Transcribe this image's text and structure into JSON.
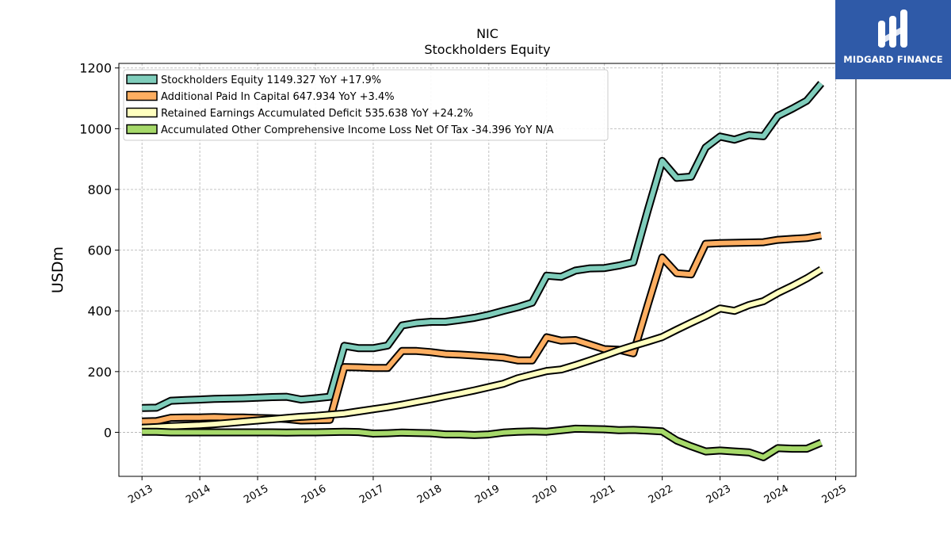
{
  "logo": {
    "text": "MIDGARD FINANCE",
    "background": "#2f5aa8"
  },
  "chart_data": {
    "type": "line",
    "title": "NIC",
    "subtitle": "Stockholders  Equity",
    "ylabel": "USDm",
    "xlabel": "",
    "xlim": [
      2012.6,
      2025.35
    ],
    "ylim": [
      -145,
      1215
    ],
    "x_ticks": [
      2013,
      2014,
      2015,
      2016,
      2017,
      2018,
      2019,
      2020,
      2021,
      2022,
      2023,
      2024,
      2025
    ],
    "y_ticks": [
      0,
      200,
      400,
      600,
      800,
      1000,
      1200
    ],
    "grid": true,
    "legend_position": "upper-left",
    "series": [
      {
        "name": "Stockholders Equity  1149.327 YoY +17.9%",
        "color": "#7fcdbb",
        "points": [
          [
            2013.0,
            80
          ],
          [
            2013.25,
            81
          ],
          [
            2013.5,
            104
          ],
          [
            2013.75,
            106
          ],
          [
            2014.0,
            108
          ],
          [
            2014.25,
            110
          ],
          [
            2014.5,
            111
          ],
          [
            2014.75,
            112
          ],
          [
            2015.0,
            114
          ],
          [
            2015.25,
            116
          ],
          [
            2015.5,
            117
          ],
          [
            2015.75,
            108
          ],
          [
            2016.0,
            112
          ],
          [
            2016.25,
            117
          ],
          [
            2016.5,
            285
          ],
          [
            2016.75,
            277
          ],
          [
            2017.0,
            277
          ],
          [
            2017.25,
            286
          ],
          [
            2017.5,
            352
          ],
          [
            2017.75,
            360
          ],
          [
            2018.0,
            364
          ],
          [
            2018.25,
            364
          ],
          [
            2018.5,
            370
          ],
          [
            2018.75,
            377
          ],
          [
            2019.0,
            387
          ],
          [
            2019.25,
            400
          ],
          [
            2019.5,
            412
          ],
          [
            2019.75,
            427
          ],
          [
            2020.0,
            516
          ],
          [
            2020.25,
            512
          ],
          [
            2020.5,
            533
          ],
          [
            2020.75,
            540
          ],
          [
            2021.0,
            541
          ],
          [
            2021.25,
            549
          ],
          [
            2021.5,
            560
          ],
          [
            2021.75,
            731
          ],
          [
            2022.0,
            894
          ],
          [
            2022.25,
            838
          ],
          [
            2022.5,
            842
          ],
          [
            2022.75,
            938
          ],
          [
            2023.0,
            974
          ],
          [
            2023.25,
            964
          ],
          [
            2023.5,
            979
          ],
          [
            2023.75,
            975
          ],
          [
            2024.0,
            1042
          ],
          [
            2024.25,
            1066
          ],
          [
            2024.5,
            1092
          ],
          [
            2024.75,
            1149
          ]
        ]
      },
      {
        "name": "Additional Paid In Capital  647.934 YoY +3.4%",
        "color": "#fdae61",
        "points": [
          [
            2013.0,
            36
          ],
          [
            2013.25,
            37
          ],
          [
            2013.5,
            48
          ],
          [
            2013.75,
            49
          ],
          [
            2014.0,
            49
          ],
          [
            2014.25,
            50
          ],
          [
            2014.5,
            49
          ],
          [
            2014.75,
            49
          ],
          [
            2015.0,
            47
          ],
          [
            2015.25,
            46
          ],
          [
            2015.5,
            44
          ],
          [
            2015.75,
            39
          ],
          [
            2016.0,
            40
          ],
          [
            2016.25,
            41
          ],
          [
            2016.5,
            215
          ],
          [
            2016.75,
            214
          ],
          [
            2017.0,
            212
          ],
          [
            2017.25,
            212
          ],
          [
            2017.5,
            268
          ],
          [
            2017.75,
            268
          ],
          [
            2018.0,
            264
          ],
          [
            2018.25,
            258
          ],
          [
            2018.5,
            256
          ],
          [
            2018.75,
            253
          ],
          [
            2019.0,
            250
          ],
          [
            2019.25,
            246
          ],
          [
            2019.5,
            237
          ],
          [
            2019.75,
            237
          ],
          [
            2020.0,
            313
          ],
          [
            2020.25,
            302
          ],
          [
            2020.5,
            304
          ],
          [
            2020.75,
            289
          ],
          [
            2021.0,
            274
          ],
          [
            2021.25,
            272
          ],
          [
            2021.5,
            260
          ],
          [
            2021.75,
            420
          ],
          [
            2022.0,
            576
          ],
          [
            2022.25,
            524
          ],
          [
            2022.5,
            520
          ],
          [
            2022.75,
            621
          ],
          [
            2023.0,
            623
          ],
          [
            2023.25,
            624
          ],
          [
            2023.5,
            625
          ],
          [
            2023.75,
            626
          ],
          [
            2024.0,
            634
          ],
          [
            2024.25,
            637
          ],
          [
            2024.5,
            640
          ],
          [
            2024.75,
            648
          ]
        ]
      },
      {
        "name": "Retained Earnings Accumulated Deficit  535.638 YoY +24.2%",
        "color": "#ffffbf",
        "points": [
          [
            2013.0,
            15
          ],
          [
            2013.25,
            17
          ],
          [
            2013.5,
            20
          ],
          [
            2013.75,
            22
          ],
          [
            2014.0,
            24
          ],
          [
            2014.25,
            27
          ],
          [
            2014.5,
            31
          ],
          [
            2014.75,
            35
          ],
          [
            2015.0,
            39
          ],
          [
            2015.25,
            43
          ],
          [
            2015.5,
            47
          ],
          [
            2015.75,
            51
          ],
          [
            2016.0,
            54
          ],
          [
            2016.25,
            58
          ],
          [
            2016.5,
            62
          ],
          [
            2016.75,
            69
          ],
          [
            2017.0,
            76
          ],
          [
            2017.25,
            83
          ],
          [
            2017.5,
            91
          ],
          [
            2017.75,
            100
          ],
          [
            2018.0,
            109
          ],
          [
            2018.25,
            119
          ],
          [
            2018.5,
            128
          ],
          [
            2018.75,
            138
          ],
          [
            2019.0,
            149
          ],
          [
            2019.25,
            160
          ],
          [
            2019.5,
            178
          ],
          [
            2019.75,
            190
          ],
          [
            2020.0,
            202
          ],
          [
            2020.25,
            207
          ],
          [
            2020.5,
            221
          ],
          [
            2020.75,
            237
          ],
          [
            2021.0,
            253
          ],
          [
            2021.25,
            270
          ],
          [
            2021.5,
            285
          ],
          [
            2021.75,
            299
          ],
          [
            2022.0,
            314
          ],
          [
            2022.25,
            338
          ],
          [
            2022.5,
            361
          ],
          [
            2022.75,
            383
          ],
          [
            2023.0,
            408
          ],
          [
            2023.25,
            400
          ],
          [
            2023.5,
            419
          ],
          [
            2023.75,
            432
          ],
          [
            2024.0,
            459
          ],
          [
            2024.25,
            482
          ],
          [
            2024.5,
            507
          ],
          [
            2024.75,
            536
          ]
        ]
      },
      {
        "name": "Accumulated Other Comprehensive Income Loss Net Of Tax  -34.396 YoY N/A",
        "color": "#a6d96a",
        "points": [
          [
            2013.0,
            2
          ],
          [
            2013.25,
            2
          ],
          [
            2013.5,
            0
          ],
          [
            2013.75,
            0
          ],
          [
            2014.0,
            0
          ],
          [
            2014.25,
            0
          ],
          [
            2014.5,
            0
          ],
          [
            2014.75,
            0
          ],
          [
            2015.0,
            0
          ],
          [
            2015.25,
            0
          ],
          [
            2015.5,
            -1
          ],
          [
            2015.75,
            0
          ],
          [
            2016.0,
            0
          ],
          [
            2016.25,
            1
          ],
          [
            2016.5,
            2
          ],
          [
            2016.75,
            1
          ],
          [
            2017.0,
            -4
          ],
          [
            2017.25,
            -3
          ],
          [
            2017.5,
            -1
          ],
          [
            2017.75,
            -2
          ],
          [
            2018.0,
            -3
          ],
          [
            2018.25,
            -7
          ],
          [
            2018.5,
            -7
          ],
          [
            2018.75,
            -9
          ],
          [
            2019.0,
            -7
          ],
          [
            2019.25,
            -1
          ],
          [
            2019.5,
            2
          ],
          [
            2019.75,
            3
          ],
          [
            2020.0,
            2
          ],
          [
            2020.25,
            7
          ],
          [
            2020.5,
            12
          ],
          [
            2020.75,
            11
          ],
          [
            2021.0,
            10
          ],
          [
            2021.25,
            7
          ],
          [
            2021.5,
            8
          ],
          [
            2021.75,
            6
          ],
          [
            2022.0,
            3
          ],
          [
            2022.25,
            -27
          ],
          [
            2022.5,
            -46
          ],
          [
            2022.75,
            -63
          ],
          [
            2023.0,
            -60
          ],
          [
            2023.25,
            -63
          ],
          [
            2023.5,
            -66
          ],
          [
            2023.75,
            -82
          ],
          [
            2024.0,
            -52
          ],
          [
            2024.25,
            -54
          ],
          [
            2024.5,
            -54
          ],
          [
            2024.75,
            -34
          ]
        ]
      }
    ]
  }
}
